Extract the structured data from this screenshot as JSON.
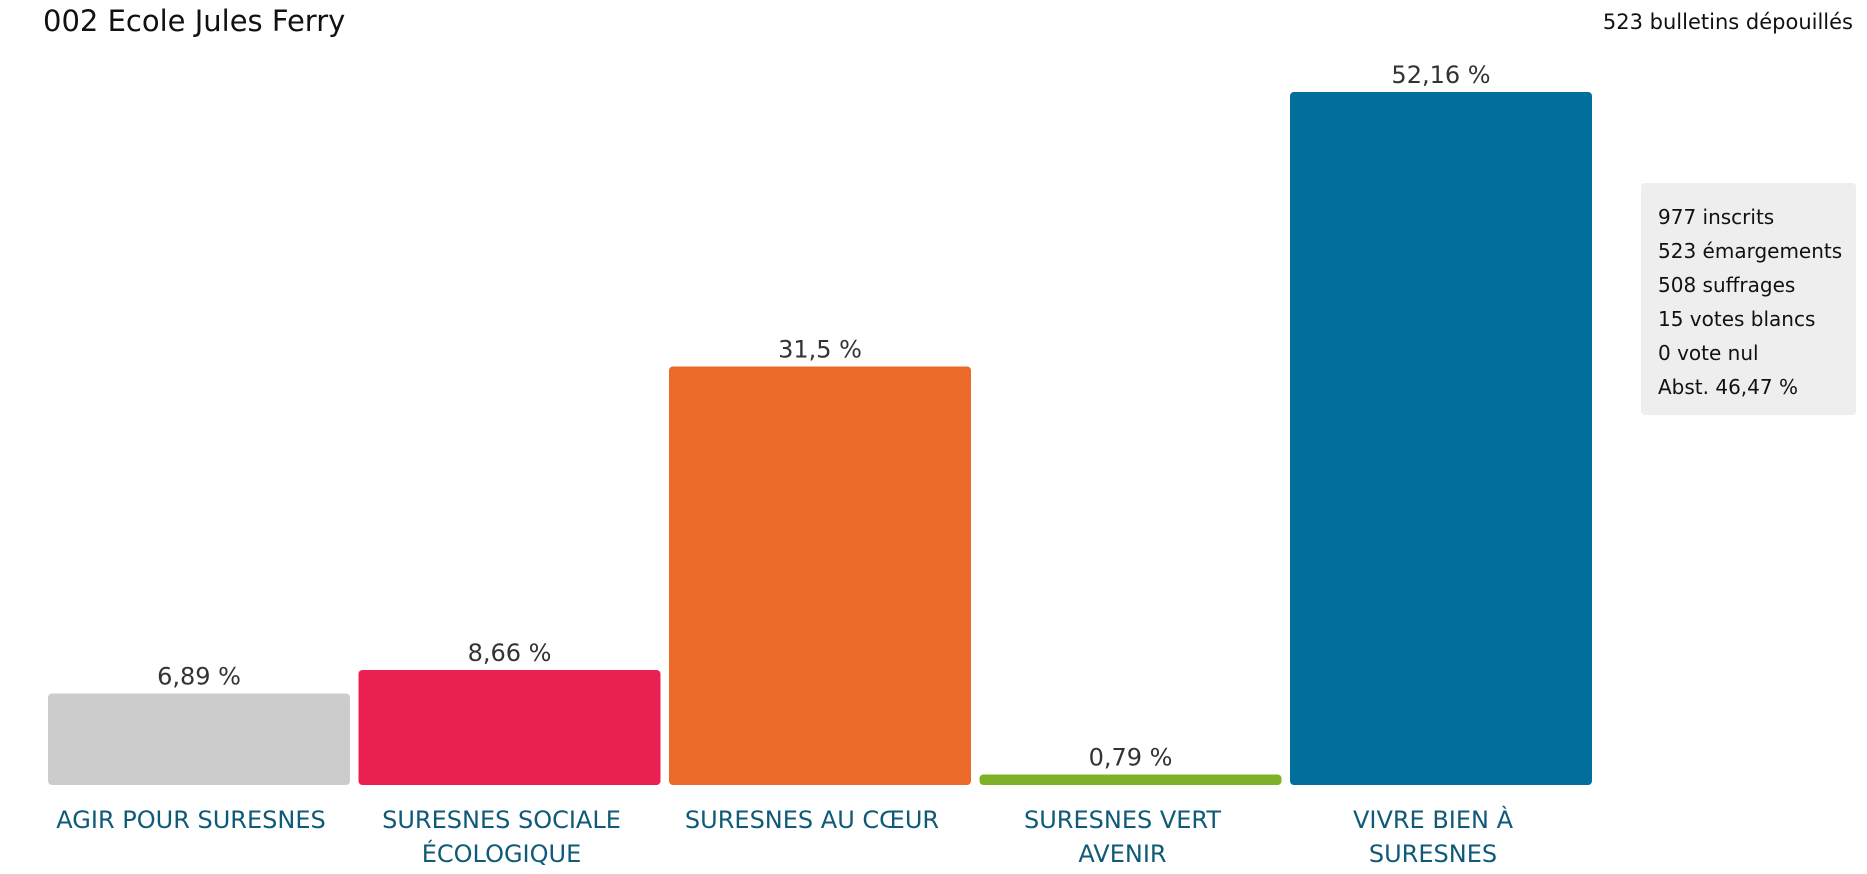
{
  "header": {
    "title": "002 Ecole Jules Ferry",
    "ballots": "523 bulletins dépouillés"
  },
  "stats": [
    "977 inscrits",
    "523 émargements",
    "508 suffrages",
    "15 votes blancs",
    "0 vote nul",
    "Abst. 46,47 %"
  ],
  "chart_data": {
    "type": "bar",
    "title": "002 Ecole Jules Ferry",
    "xlabel": "",
    "ylabel": "",
    "ylim": [
      0,
      52.16
    ],
    "grid": false,
    "categories": [
      [
        "AGIR POUR SURESNES"
      ],
      [
        "SURESNES SOCIALE",
        "ÉCOLOGIQUE"
      ],
      [
        "SURESNES AU CŒUR"
      ],
      [
        "SURESNES VERT",
        "AVENIR"
      ],
      [
        "VIVRE BIEN À",
        "SURESNES"
      ]
    ],
    "values": [
      6.89,
      8.66,
      31.5,
      0.79,
      52.16
    ],
    "value_labels": [
      "6,89 %",
      "8,66 %",
      "31,5 %",
      "0,79 %",
      "52,16 %"
    ],
    "colors": [
      "#cccccc",
      "#ea2052",
      "#eb6a2a",
      "#7eb125",
      "#016e9c"
    ],
    "label_color": "#0e5a78"
  }
}
